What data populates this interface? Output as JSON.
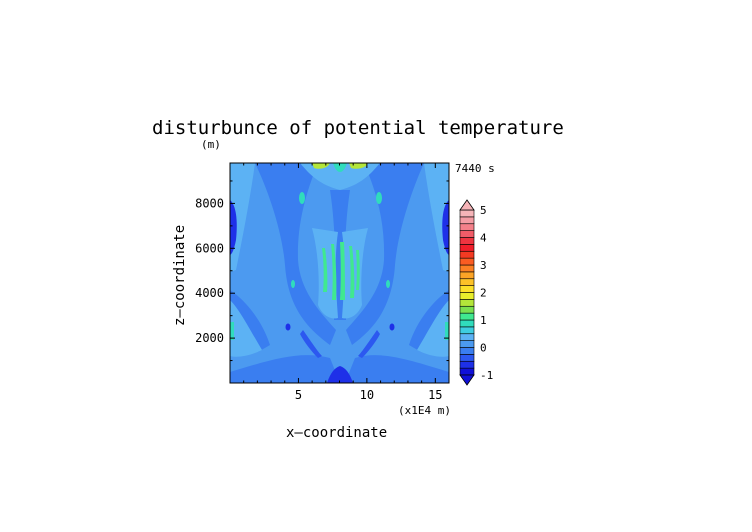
{
  "chart_data": {
    "type": "heatmap",
    "title": "disturbunce of potential temperature",
    "unit_label": "(m)",
    "time_label": "7440 s",
    "xlabel": "x—coordinate",
    "ylabel": "z—coordinate",
    "x_scale_label": "(x1E4 m)",
    "xlim": [
      0,
      16
    ],
    "ylim": [
      0,
      9800
    ],
    "x_ticks": [
      5,
      10,
      15
    ],
    "y_ticks": [
      2000,
      4000,
      6000,
      8000
    ],
    "colorbar": {
      "levels": [
        -1,
        -0.75,
        -0.5,
        -0.25,
        0,
        0.25,
        0.5,
        0.75,
        1,
        1.25,
        1.5,
        1.75,
        2,
        2.25,
        2.5,
        2.75,
        3,
        3.25,
        3.5,
        3.75,
        4,
        4.25,
        4.5,
        4.75,
        5
      ],
      "tick_labels": [
        "-1",
        "0",
        "1",
        "2",
        "3",
        "4",
        "5"
      ],
      "colors": [
        "#1010d8",
        "#1e30e8",
        "#2c58f0",
        "#3a7ef0",
        "#4c9af0",
        "#5cb2f4",
        "#3ecde0",
        "#30dcbc",
        "#40e890",
        "#7ae050",
        "#b4e63a",
        "#e8ee2c",
        "#fce02a",
        "#fcc228",
        "#fca426",
        "#fc8024",
        "#fa5c22",
        "#f43a22",
        "#f01e2a",
        "#ee3440",
        "#f05c68",
        "#f4808a",
        "#f49ca4",
        "#f6b4b8"
      ]
    },
    "background_value": 0.1,
    "features": [
      {
        "name": "dark-blue band left edge",
        "x": 0.25,
        "z": 7000,
        "value": -0.8
      },
      {
        "name": "dark-blue band right edge",
        "x": 15.75,
        "z": 7000,
        "value": -0.8
      },
      {
        "name": "green streaks center",
        "x": 8.1,
        "z": 5500,
        "value": 0.9
      },
      {
        "name": "bottom center minimum",
        "x": 8.2,
        "z": 100,
        "value": -0.9
      },
      {
        "name": "top center maximum",
        "x": 8.2,
        "z": 9700,
        "value": 1.4
      }
    ]
  }
}
